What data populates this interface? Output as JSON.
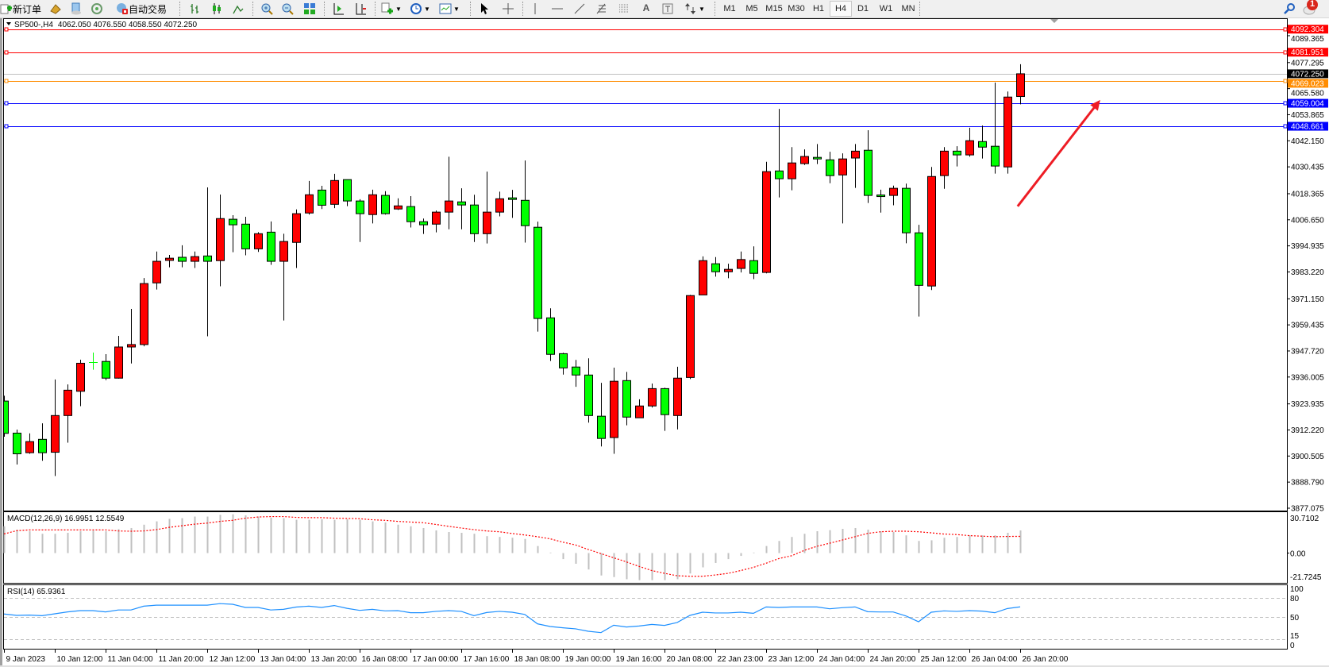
{
  "toolbar": {
    "new_order_label": "新订单",
    "auto_trading_label": "自动交易",
    "periods": [
      "M1",
      "M5",
      "M15",
      "M30",
      "H1",
      "H4",
      "D1",
      "W1",
      "MN"
    ],
    "active_period": "H4",
    "notification_count": "1",
    "icons": [
      "new-order-icon",
      "gold-icon",
      "market-watch-icon",
      "signals-icon",
      "auto-trading-icon",
      "bar-chart-icon",
      "candlestick-icon",
      "line-chart-icon",
      "zoom-in-icon",
      "zoom-out-icon",
      "tile-windows-icon",
      "auto-scroll-icon",
      "chart-shift-icon",
      "indicators-icon",
      "periods-icon",
      "templates-icon",
      "cursor-icon",
      "crosshair-icon",
      "vertical-line-icon",
      "horizontal-line-icon",
      "trendline-icon",
      "fibonacci-icon",
      "channel-icon",
      "text-icon",
      "text-label-icon",
      "arrows-icon",
      "search-icon",
      "notification-icon"
    ]
  },
  "chart": {
    "symbol": "SP500-,H4",
    "ohlc_header": "4062.050 4076.550 4058.550 4072.250",
    "macd_label": "MACD(12,26,9) 16.9951 12.5549",
    "rsi_label": "RSI(14) 65.9361"
  },
  "chart_data": {
    "type": "candlestick",
    "up_color": "#ff0000",
    "down_color": "#00ff00",
    "ylim": [
      3876.0,
      4097.2
    ],
    "price_ticks": [
      "4089.365",
      "4077.295",
      "4065.580",
      "4053.865",
      "4042.150",
      "4030.435",
      "4018.365",
      "4006.650",
      "3994.935",
      "3983.220",
      "3971.150",
      "3959.435",
      "3947.720",
      "3936.005",
      "3923.935",
      "3912.220",
      "3900.505",
      "3888.790",
      "3877.075"
    ],
    "time_labels": [
      "9 Jan 2023",
      "10 Jan 12:00",
      "11 Jan 04:00",
      "11 Jan 20:00",
      "12 Jan 12:00",
      "13 Jan 04:00",
      "13 Jan 20:00",
      "16 Jan 08:00",
      "17 Jan 00:00",
      "17 Jan 16:00",
      "18 Jan 08:00",
      "19 Jan 00:00",
      "19 Jan 16:00",
      "20 Jan 08:00",
      "22 Jan 23:00",
      "23 Jan 12:00",
      "24 Jan 04:00",
      "24 Jan 20:00",
      "25 Jan 12:00",
      "26 Jan 04:00",
      "26 Jan 20:00"
    ],
    "time_label_every_bars": 4,
    "ohlc": [
      [
        3925.2,
        3927.6,
        3909.2,
        3910.7
      ],
      [
        3910.8,
        3912.4,
        3896.7,
        3901.5
      ],
      [
        3902.0,
        3910.7,
        3901.5,
        3907.0
      ],
      [
        3908.0,
        3915.2,
        3898.4,
        3902.0
      ],
      [
        3902.2,
        3934.9,
        3891.5,
        3918.7
      ],
      [
        3918.7,
        3932.7,
        3906.5,
        3930.1
      ],
      [
        3929.6,
        3943.8,
        3922.9,
        3942.2
      ],
      [
        3942.6,
        3947.0,
        3939.3,
        3942.6
      ],
      [
        3943.0,
        3946.3,
        3934.6,
        3935.5
      ],
      [
        3935.5,
        3954.5,
        3935.3,
        3949.5
      ],
      [
        3949.5,
        3966.6,
        3942.1,
        3950.6
      ],
      [
        3950.6,
        3980.5,
        3949.8,
        3978.0
      ],
      [
        3978.3,
        3992.4,
        3975.3,
        3988.0
      ],
      [
        3988.4,
        3990.9,
        3985.3,
        3989.4
      ],
      [
        3989.8,
        3995.2,
        3985.3,
        3988.0
      ],
      [
        3988.0,
        3992.4,
        3985.0,
        3990.1
      ],
      [
        3990.4,
        4021.2,
        3954.3,
        3988.0
      ],
      [
        3988.3,
        4018.0,
        3976.8,
        4007.2
      ],
      [
        4006.9,
        4008.7,
        3992.1,
        4004.4
      ],
      [
        4004.7,
        4008.0,
        3990.7,
        3993.6
      ],
      [
        3993.6,
        4001.1,
        3992.2,
        4000.4
      ],
      [
        4001.1,
        4005.9,
        3986.4,
        3988.0
      ],
      [
        3988.0,
        4000.4,
        3961.4,
        3996.9
      ],
      [
        3996.5,
        4011.3,
        3985.0,
        4009.4
      ],
      [
        4009.7,
        4024.1,
        4009.0,
        4017.9
      ],
      [
        4020.0,
        4021.9,
        4011.5,
        4013.2
      ],
      [
        4013.6,
        4027.3,
        4011.9,
        4024.3
      ],
      [
        4024.7,
        4024.7,
        4012.8,
        4015.1
      ],
      [
        4015.1,
        4015.9,
        3996.7,
        4009.4
      ],
      [
        4009.0,
        4020.2,
        4005.0,
        4017.9
      ],
      [
        4017.6,
        4019.5,
        4009.0,
        4009.4
      ],
      [
        4011.5,
        4016.3,
        4011.1,
        4012.9
      ],
      [
        4012.6,
        4017.3,
        4003.2,
        4005.8
      ],
      [
        4005.8,
        4007.2,
        4000.3,
        4004.4
      ],
      [
        4004.7,
        4010.8,
        4001.0,
        4010.1
      ],
      [
        4010.1,
        4035.0,
        4002.4,
        4015.1
      ],
      [
        4014.7,
        4020.8,
        4002.4,
        4013.3
      ],
      [
        4013.3,
        4017.9,
        3996.7,
        4000.4
      ],
      [
        4000.4,
        4028.3,
        3996.0,
        4010.1
      ],
      [
        4010.1,
        4019.3,
        4008.2,
        4016.1
      ],
      [
        4016.5,
        4020.1,
        4007.5,
        4015.8
      ],
      [
        4015.4,
        4033.3,
        3996.4,
        4004.0
      ],
      [
        4003.3,
        4005.8,
        3956.4,
        3962.3
      ],
      [
        3962.6,
        3966.9,
        3943.2,
        3946.2
      ],
      [
        3946.5,
        3946.9,
        3937.1,
        3940.1
      ],
      [
        3940.5,
        3943.7,
        3931.6,
        3936.9
      ],
      [
        3936.9,
        3944.4,
        3915.5,
        3918.7
      ],
      [
        3918.4,
        3933.4,
        3904.8,
        3908.4
      ],
      [
        3908.8,
        3940.2,
        3901.5,
        3934.1
      ],
      [
        3934.4,
        3938.3,
        3914.3,
        3918.0
      ],
      [
        3917.7,
        3926.0,
        3917.7,
        3923.0
      ],
      [
        3923.0,
        3933.1,
        3922.3,
        3930.8
      ],
      [
        3930.8,
        3931.2,
        3911.8,
        3919.1
      ],
      [
        3918.7,
        3940.6,
        3912.5,
        3935.5
      ],
      [
        3935.8,
        3972.9,
        3935.1,
        3972.6
      ],
      [
        3972.9,
        3990.2,
        3972.9,
        3988.3
      ],
      [
        3986.9,
        3989.9,
        3981.1,
        3983.3
      ],
      [
        3983.3,
        3986.9,
        3980.4,
        3984.4
      ],
      [
        3984.8,
        3992.4,
        3983.0,
        3988.8
      ],
      [
        3988.3,
        3994.7,
        3980.0,
        3982.6
      ],
      [
        3983.0,
        4032.7,
        3982.6,
        4028.3
      ],
      [
        4028.6,
        4056.5,
        4016.7,
        4025.1
      ],
      [
        4025.1,
        4039.3,
        4019.9,
        4032.2
      ],
      [
        4031.9,
        4038.3,
        4031.3,
        4035.1
      ],
      [
        4034.7,
        4040.7,
        4031.7,
        4034.0
      ],
      [
        4033.6,
        4037.2,
        4023.1,
        4026.5
      ],
      [
        4026.8,
        4036.5,
        4005.0,
        4034.0
      ],
      [
        4034.4,
        4040.7,
        4021.0,
        4037.5
      ],
      [
        4037.9,
        4046.9,
        4014.2,
        4017.6
      ],
      [
        4017.8,
        4020.2,
        4009.9,
        4017.6
      ],
      [
        4017.6,
        4022.0,
        4013.2,
        4020.8
      ],
      [
        4020.8,
        4022.9,
        3996.1,
        4000.8
      ],
      [
        4000.8,
        4004.4,
        3963.2,
        3977.2
      ],
      [
        3976.9,
        4030.4,
        3975.1,
        4026.1
      ],
      [
        4026.5,
        4039.3,
        4020.6,
        4037.5
      ],
      [
        4037.5,
        4039.7,
        4030.6,
        4035.8
      ],
      [
        4035.8,
        4048.0,
        4035.0,
        4042.2
      ],
      [
        4041.8,
        4049.0,
        4034.2,
        4039.3
      ],
      [
        4039.7,
        4068.3,
        4027.4,
        4030.8
      ],
      [
        4030.4,
        4064.3,
        4027.4,
        4061.8
      ],
      [
        4062.05,
        4076.55,
        4058.55,
        4072.25
      ]
    ],
    "current_price": {
      "value": "4072.250",
      "color": "#000000"
    },
    "hlines": [
      {
        "value": "4092.304",
        "color": "#ff0000"
      },
      {
        "value": "4081.951",
        "color": "#ff0000"
      },
      {
        "value": "4069.023",
        "color": "#ff8c00"
      },
      {
        "value": "4059.004",
        "color": "#0000ff"
      },
      {
        "value": "4048.661",
        "color": "#0000ff"
      }
    ],
    "arrow": {
      "color": "#ee1c24",
      "from": {
        "bar": 79.8,
        "price": 4012.7
      },
      "to": {
        "bar": 86.3,
        "price": 4060.5
      }
    },
    "macd": {
      "ylim": [
        -21.7245,
        30.7102
      ],
      "ticks": [
        "30.7102",
        "0.00",
        "-21.7245"
      ],
      "histogram_color": "#c0c0c0",
      "signal_color": "#ff0000",
      "histogram": [
        20.1,
        17.6,
        16.4,
        14.5,
        14.5,
        15.2,
        16.4,
        16.8,
        16.4,
        18.0,
        18.8,
        21.3,
        23.8,
        25.7,
        26.2,
        27.4,
        27.4,
        28.7,
        29.1,
        28.3,
        27.4,
        26.6,
        26.2,
        25.0,
        25.0,
        25.4,
        25.0,
        25.4,
        25.0,
        23.8,
        23.0,
        21.3,
        20.1,
        18.8,
        17.0,
        15.8,
        15.2,
        14.5,
        12.7,
        12.1,
        11.5,
        10.6,
        5.3,
        0.4,
        -4.5,
        -8.0,
        -12.3,
        -16.8,
        -18.0,
        -19.6,
        -20.3,
        -20.3,
        -20.3,
        -19.6,
        -15.3,
        -10.7,
        -7.4,
        -4.5,
        -2.1,
        0.4,
        5.3,
        9.1,
        12.1,
        14.5,
        16.4,
        17.2,
        18.2,
        18.8,
        17.6,
        16.4,
        15.8,
        13.3,
        9.1,
        9.6,
        11.5,
        12.1,
        13.3,
        13.3,
        13.3,
        15.2,
        17.0
      ],
      "signal": [
        14.4,
        16.8,
        17.4,
        17.4,
        17.4,
        17.4,
        17.4,
        17.4,
        17.4,
        16.6,
        16.4,
        16.6,
        17.6,
        19.3,
        20.5,
        21.7,
        22.5,
        23.8,
        24.6,
        26.2,
        27.1,
        27.4,
        27.4,
        26.8,
        26.6,
        26.6,
        26.2,
        26.0,
        25.8,
        25.0,
        24.6,
        23.8,
        23.3,
        22.8,
        21.5,
        20.1,
        18.8,
        17.6,
        16.6,
        16.0,
        14.7,
        13.6,
        12.3,
        10.7,
        8.2,
        6.1,
        2.7,
        -0.4,
        -3.5,
        -6.6,
        -10.0,
        -13.1,
        -15.2,
        -17.0,
        -17.4,
        -17.4,
        -16.4,
        -15.2,
        -13.1,
        -10.7,
        -7.6,
        -4.1,
        -2.0,
        2.0,
        5.1,
        7.4,
        9.8,
        12.3,
        14.8,
        16.0,
        16.4,
        16.4,
        16.0,
        15.2,
        14.3,
        13.9,
        13.1,
        12.7,
        12.3,
        12.5,
        12.55
      ]
    },
    "rsi": {
      "ylim": [
        0,
        100
      ],
      "ticks": [
        "100",
        "80",
        "50",
        "15",
        "0"
      ],
      "levels": [
        80,
        50,
        15
      ],
      "line_color": "#1e90ff",
      "values": [
        54.7,
        52.5,
        53,
        52,
        55,
        58,
        60,
        60,
        58,
        61,
        61,
        67,
        68.6,
        68.6,
        68.6,
        68.6,
        68.6,
        71,
        70,
        65,
        65,
        61,
        62,
        65.6,
        67,
        65,
        68,
        63.6,
        60.4,
        62,
        59.6,
        60,
        56.7,
        56.7,
        58.8,
        60,
        58.8,
        52.1,
        57,
        58.8,
        57.5,
        54,
        39.2,
        35,
        33,
        31.3,
        27.5,
        25.4,
        37,
        34.2,
        35.8,
        38.3,
        36.7,
        41.3,
        52.5,
        57.5,
        56.3,
        56.3,
        57.5,
        55.8,
        65.8,
        65,
        65.8,
        65.8,
        65.8,
        62.9,
        64.6,
        65.8,
        58.3,
        57.9,
        57.9,
        51.7,
        42.5,
        57.5,
        59.6,
        58.8,
        60,
        59.2,
        56.7,
        63.3,
        65.94
      ]
    }
  }
}
